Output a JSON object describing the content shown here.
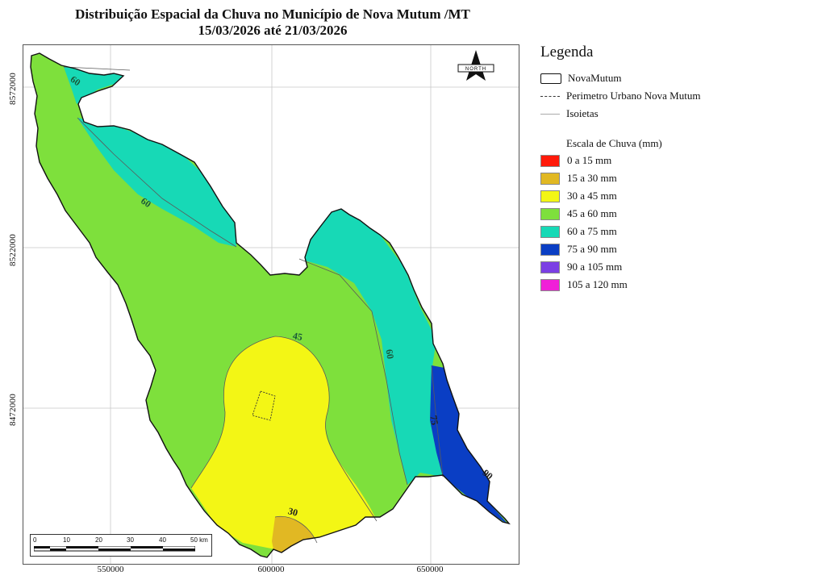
{
  "map": {
    "title_line1": "Distribuição Espacial da Chuva no Município de Nova Mutum /MT",
    "title_line2": "15/03/2026 até 21/03/2026",
    "y_ticks": [
      "8572000",
      "8522000",
      "8472000"
    ],
    "x_ticks": [
      "550000",
      "600000",
      "650000"
    ],
    "isoline_labels": [
      "60",
      "60",
      "45",
      "60",
      "75",
      "90",
      "30"
    ],
    "north_label": "NORTH",
    "scale_bar": {
      "labels": [
        "0",
        "10",
        "20",
        "30",
        "40",
        "50 km"
      ]
    },
    "zones": [
      {
        "range": "45 a 60 mm",
        "color": "#7ee03c"
      },
      {
        "range": "60 a 75 mm",
        "color": "#17d9b6"
      },
      {
        "range": "30 a 45 mm",
        "color": "#f3f615"
      },
      {
        "range": "15 a 30 mm",
        "color": "#e1b823"
      },
      {
        "range": "75 a 90 mm",
        "color": "#0a3ec4"
      }
    ]
  },
  "legend": {
    "title": "Legenda",
    "items": [
      {
        "label": "NovaMutum",
        "symbol": "boundary-box"
      },
      {
        "label": "Perimetro Urbano Nova Mutum",
        "symbol": "dashed-line"
      },
      {
        "label": "Isoietas",
        "symbol": "grey-line"
      }
    ],
    "scale_title": "Escala de Chuva (mm)",
    "scale": [
      {
        "label": "0 a 15 mm",
        "color": "#ff1a0a"
      },
      {
        "label": "15 a 30 mm",
        "color": "#e1b823"
      },
      {
        "label": "30 a 45 mm",
        "color": "#f3f615"
      },
      {
        "label": "45 a 60 mm",
        "color": "#7ee03c"
      },
      {
        "label": "60 a 75 mm",
        "color": "#17d9b6"
      },
      {
        "label": "75 a 90 mm",
        "color": "#0a3ec4"
      },
      {
        "label": "90 a 105 mm",
        "color": "#7b3fe4"
      },
      {
        "label": "105 a 120 mm",
        "color": "#f020d8"
      }
    ]
  }
}
